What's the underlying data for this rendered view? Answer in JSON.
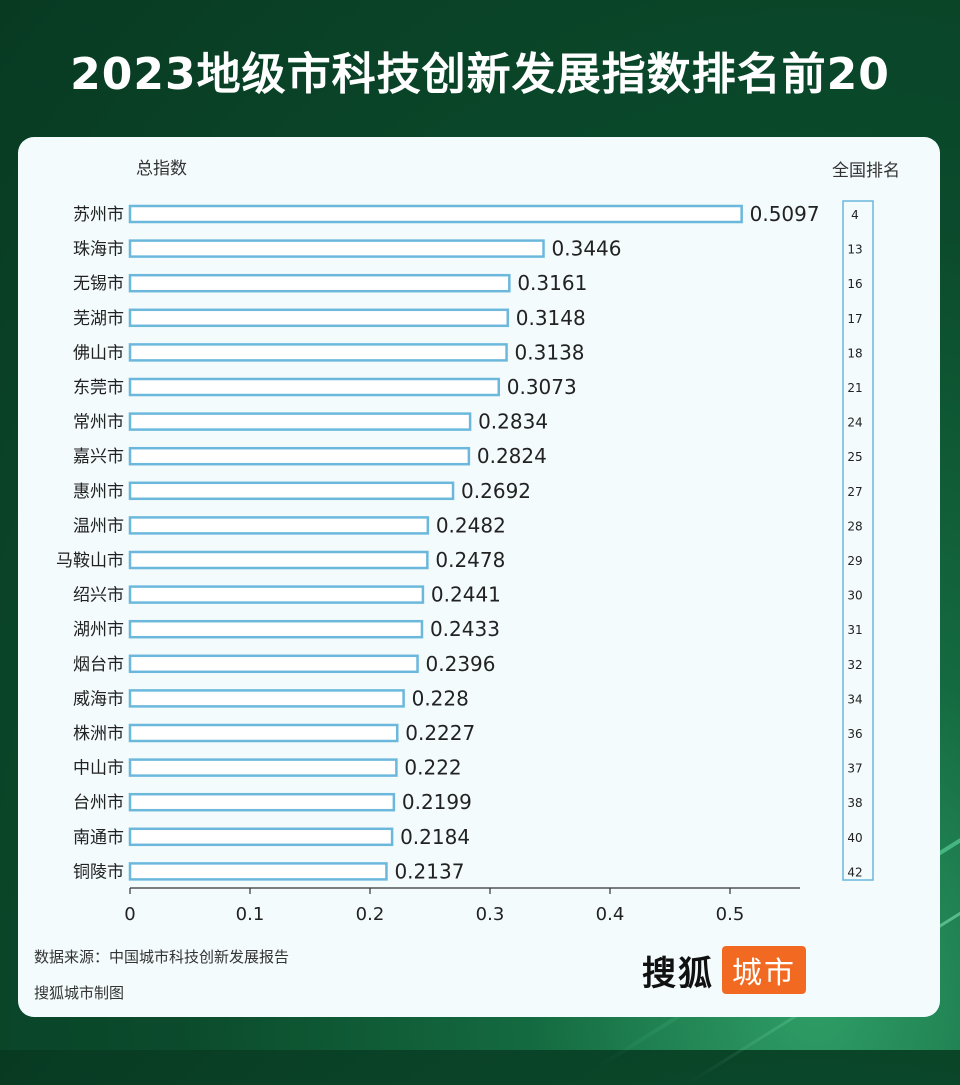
{
  "title": "2023地级市科技创新发展指数排名前20",
  "left_header": "总指数",
  "right_header": "全国排名",
  "source": "数据来源：中国城市科技创新发展报告",
  "credit": "搜狐城市制图",
  "logo": {
    "text": "搜狐",
    "badge": "城市"
  },
  "colors": {
    "bar_stroke": "#6bb8dc",
    "bar_fill": "#ffffff",
    "badge": "#f26a21"
  },
  "chart_data": {
    "type": "bar",
    "orientation": "horizontal",
    "categories": [
      "苏州市",
      "珠海市",
      "无锡市",
      "芜湖市",
      "佛山市",
      "东莞市",
      "常州市",
      "嘉兴市",
      "惠州市",
      "温州市",
      "马鞍山市",
      "绍兴市",
      "湖州市",
      "烟台市",
      "威海市",
      "株洲市",
      "中山市",
      "台州市",
      "南通市",
      "铜陵市"
    ],
    "values": [
      0.5097,
      0.3446,
      0.3161,
      0.3148,
      0.3138,
      0.3073,
      0.2834,
      0.2824,
      0.2692,
      0.2482,
      0.2478,
      0.2441,
      0.2433,
      0.2396,
      0.228,
      0.2227,
      0.222,
      0.2199,
      0.2184,
      0.2137
    ],
    "value_labels": [
      "0.5097",
      "0.3446",
      "0.3161",
      "0.3148",
      "0.3138",
      "0.3073",
      "0.2834",
      "0.2824",
      "0.2692",
      "0.2482",
      "0.2478",
      "0.2441",
      "0.2433",
      "0.2396",
      "0.228",
      "0.2227",
      "0.222",
      "0.2199",
      "0.2184",
      "0.2137"
    ],
    "ranks": [
      "4",
      "13",
      "16",
      "17",
      "18",
      "21",
      "24",
      "25",
      "27",
      "28",
      "29",
      "30",
      "31",
      "32",
      "34",
      "36",
      "37",
      "38",
      "40",
      "42"
    ],
    "xticks": [
      "0",
      "0.1",
      "0.2",
      "0.3",
      "0.4",
      "0.5"
    ],
    "xlim": [
      0,
      0.56
    ],
    "grid": false
  }
}
